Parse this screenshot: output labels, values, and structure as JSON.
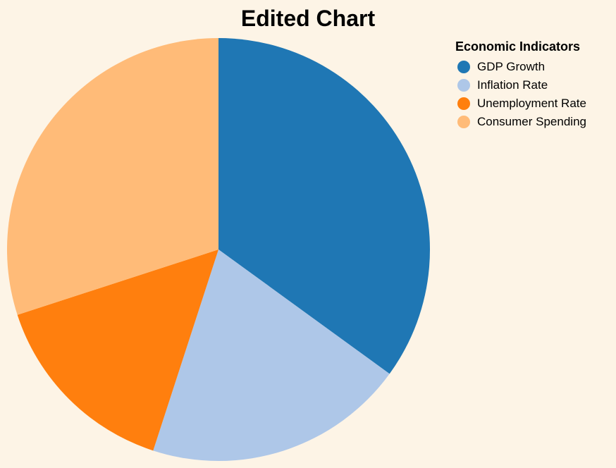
{
  "chart_data": {
    "type": "pie",
    "title": "Edited Chart",
    "legend_title": "Economic Indicators",
    "legend_position": "top-right",
    "slices": [
      {
        "label": "GDP Growth",
        "value": 35,
        "color": "#1f77b4"
      },
      {
        "label": "Inflation Rate",
        "value": 20,
        "color": "#aec7e8"
      },
      {
        "label": "Unemployment Rate",
        "value": 15,
        "color": "#ff7f0e"
      },
      {
        "label": "Consumer Spending",
        "value": 30,
        "color": "#ffbb78"
      }
    ]
  }
}
